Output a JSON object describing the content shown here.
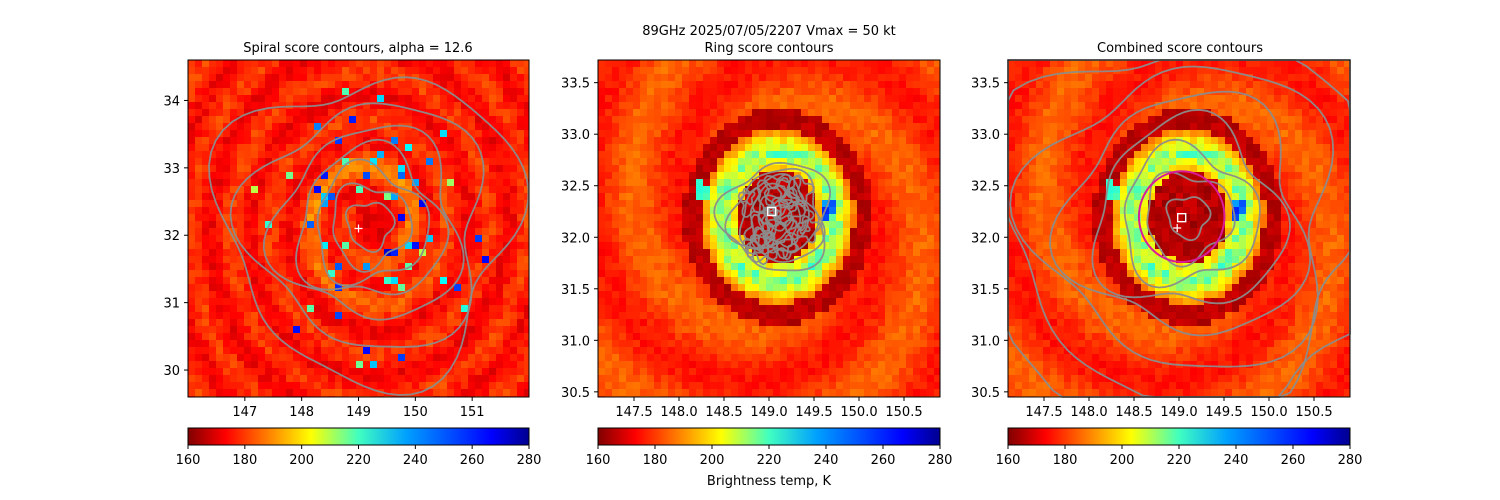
{
  "figure": {
    "suptitle": "89GHz  2025/07/05/2207    Vmax = 50 kt",
    "colorbar_label": "Brightness temp, K"
  },
  "chart_data": [
    {
      "type": "heatmap",
      "title": "Spiral score contours, alpha = 12.6",
      "xlim": [
        146.0,
        152.0
      ],
      "ylim": [
        29.6,
        34.6
      ],
      "xticks": [
        "147",
        "148",
        "149",
        "150",
        "151"
      ],
      "xtick_values": [
        147,
        148,
        149,
        150,
        151
      ],
      "yticks": [
        "30",
        "31",
        "32",
        "33",
        "34"
      ],
      "ytick_values": [
        30,
        31,
        32,
        33,
        34
      ],
      "colormap": "jet",
      "colorbar": {
        "min": 160,
        "max": 280,
        "ticks": [
          "160",
          "180",
          "200",
          "220",
          "240",
          "260",
          "280"
        ],
        "tick_values": [
          160,
          180,
          200,
          220,
          240,
          260,
          280
        ]
      },
      "contour_color": "#8c8c8c",
      "center": [
        149.2,
        32.15
      ],
      "markers": [
        {
          "type": "plus",
          "x": 149.0,
          "y": 32.1,
          "color": "#ffffff"
        }
      ],
      "contour_radii_deg": [
        0.35,
        0.6,
        0.85,
        1.1,
        1.4,
        1.8,
        2.25
      ]
    },
    {
      "type": "heatmap",
      "title": "Ring score contours",
      "xlim": [
        147.1,
        150.9
      ],
      "ylim": [
        30.45,
        33.72
      ],
      "xticks": [
        "147.5",
        "148.0",
        "148.5",
        "149.0",
        "149.5",
        "150.0",
        "150.5"
      ],
      "xtick_values": [
        147.5,
        148.0,
        148.5,
        149.0,
        149.5,
        150.0,
        150.5
      ],
      "yticks": [
        "30.5",
        "31.0",
        "31.5",
        "32.0",
        "32.5",
        "33.0",
        "33.5"
      ],
      "ytick_values": [
        30.5,
        31.0,
        31.5,
        32.0,
        32.5,
        33.0,
        33.5
      ],
      "colormap": "jet",
      "colorbar": {
        "min": 160,
        "max": 280,
        "ticks": [
          "160",
          "180",
          "200",
          "220",
          "240",
          "260",
          "280"
        ],
        "tick_values": [
          160,
          180,
          200,
          220,
          240,
          260,
          280
        ]
      },
      "contour_color": "#8c8c8c",
      "center": [
        149.1,
        32.2
      ],
      "markers": [
        {
          "type": "square",
          "x": 149.03,
          "y": 32.25,
          "color": "#ffffff"
        }
      ],
      "contour_radii_deg": [
        0.12,
        0.2,
        0.28,
        0.36,
        0.44,
        0.52
      ]
    },
    {
      "type": "heatmap",
      "title": "Combined score contours",
      "xlim": [
        147.1,
        150.9
      ],
      "ylim": [
        30.45,
        33.72
      ],
      "xticks": [
        "147.5",
        "148.0",
        "148.5",
        "149.0",
        "149.5",
        "150.0",
        "150.5"
      ],
      "xtick_values": [
        147.5,
        148.0,
        148.5,
        149.0,
        149.5,
        150.0,
        150.5
      ],
      "yticks": [
        "30.5",
        "31.0",
        "31.5",
        "32.0",
        "32.5",
        "33.0",
        "33.5"
      ],
      "ytick_values": [
        30.5,
        31.0,
        31.5,
        32.0,
        32.5,
        33.0,
        33.5
      ],
      "colormap": "jet",
      "colorbar": {
        "min": 160,
        "max": 280,
        "ticks": [
          "160",
          "180",
          "200",
          "220",
          "240",
          "260",
          "280"
        ],
        "tick_values": [
          160,
          180,
          200,
          220,
          240,
          260,
          280
        ]
      },
      "contour_color": "#8c8c8c",
      "center": [
        149.1,
        32.2
      ],
      "markers": [
        {
          "type": "square",
          "x": 149.03,
          "y": 32.19,
          "color": "#ffffff"
        },
        {
          "type": "plus",
          "x": 148.98,
          "y": 32.09,
          "color": "#ffffff"
        }
      ],
      "circle": {
        "x": 149.03,
        "y": 32.2,
        "radius_deg": 0.5,
        "color": "#d81b9b"
      },
      "contour_radii_deg": [
        0.2,
        0.42,
        0.65,
        0.9,
        1.15,
        1.45,
        1.8,
        2.2
      ]
    }
  ]
}
